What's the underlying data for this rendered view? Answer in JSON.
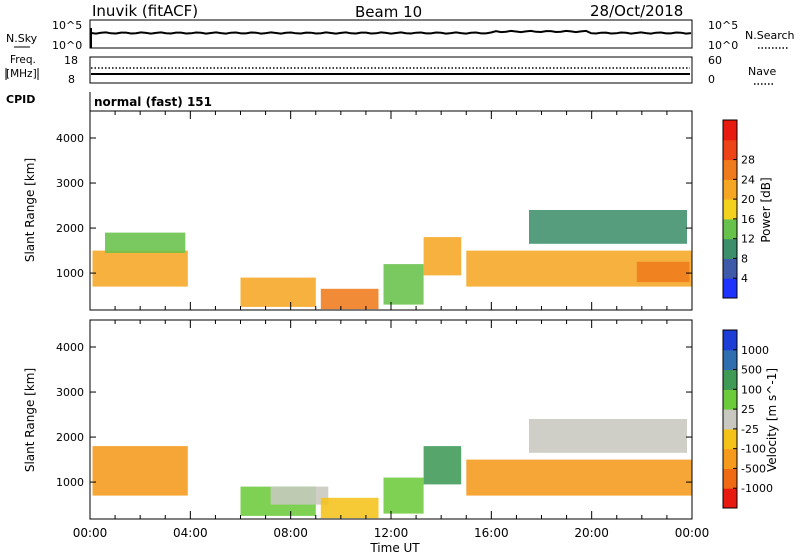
{
  "header": {
    "station": "Inuvik (fitACF)",
    "beam": "Beam 10",
    "date": "28/Oct/2018"
  },
  "top_panel": {
    "left_label": "N.Sky",
    "right_label": "N.Search",
    "left_ticks": [
      "10^5",
      "10^0"
    ],
    "right_ticks": [
      "10^5",
      "10^0"
    ]
  },
  "freq_panel": {
    "left_label_1": "Freq.",
    "left_label_2": "[MHz]",
    "right_label": "Nave",
    "left_ticks": [
      "18",
      "8"
    ],
    "right_ticks": [
      "60",
      "0"
    ]
  },
  "cpid": {
    "label": "CPID",
    "value": "normal (fast) 151"
  },
  "x_axis": {
    "label": "Time UT",
    "ticks": [
      "00:00",
      "04:00",
      "08:00",
      "12:00",
      "16:00",
      "20:00",
      "00:00"
    ]
  },
  "chart_data": [
    {
      "type": "heatmap",
      "panel": "power",
      "xlabel": "Time UT",
      "ylabel": "Slant Range [km]",
      "xlim": [
        0,
        24
      ],
      "ylim": [
        180,
        4600
      ],
      "y_ticks": [
        1000,
        2000,
        3000,
        4000
      ],
      "colorbar": {
        "label": "Power [dB]",
        "ticks": [
          "4",
          "8",
          "12",
          "16",
          "20",
          "24",
          "28"
        ],
        "colors": [
          "#1f33ff",
          "#3f5aa8",
          "#3d8f6b",
          "#66c24a",
          "#f2d21c",
          "#f5a623",
          "#f07b1c",
          "#ee4316",
          "#e81a10"
        ]
      },
      "blobs": [
        {
          "t0": 0.1,
          "t1": 3.9,
          "r0": 700,
          "r1": 1500,
          "level": 5
        },
        {
          "t0": 0.6,
          "t1": 3.8,
          "r0": 1450,
          "r1": 1900,
          "level": 3
        },
        {
          "t0": 6.0,
          "t1": 9.0,
          "r0": 250,
          "r1": 900,
          "level": 5
        },
        {
          "t0": 9.2,
          "t1": 11.5,
          "r0": 200,
          "r1": 650,
          "level": 6
        },
        {
          "t0": 11.7,
          "t1": 13.3,
          "r0": 300,
          "r1": 1200,
          "level": 3
        },
        {
          "t0": 13.3,
          "t1": 14.8,
          "r0": 950,
          "r1": 1800,
          "level": 5
        },
        {
          "t0": 15.0,
          "t1": 24.0,
          "r0": 700,
          "r1": 1500,
          "level": 5
        },
        {
          "t0": 17.5,
          "t1": 23.8,
          "r0": 1650,
          "r1": 2400,
          "level": 2
        },
        {
          "t0": 21.8,
          "t1": 23.9,
          "r0": 800,
          "r1": 1250,
          "level": 6
        }
      ]
    },
    {
      "type": "heatmap",
      "panel": "velocity",
      "xlabel": "Time UT",
      "ylabel": "Slant Range [km]",
      "xlim": [
        0,
        24
      ],
      "ylim": [
        180,
        4600
      ],
      "y_ticks": [
        1000,
        2000,
        3000,
        4000
      ],
      "colorbar": {
        "label": "Velocity [m s^-1]",
        "ticks": [
          "1000",
          "500",
          "100",
          "25",
          "-25",
          "-100",
          "-500",
          "-1000"
        ],
        "colors": [
          "#1c3dd6",
          "#2f6fb0",
          "#3f9a56",
          "#6ccb3a",
          "#c8c8c0",
          "#f5c21a",
          "#f59a1a",
          "#f06a14",
          "#e81a10"
        ]
      },
      "blobs": [
        {
          "t0": 0.1,
          "t1": 3.9,
          "r0": 700,
          "r1": 1800,
          "level": 6
        },
        {
          "t0": 6.0,
          "t1": 9.0,
          "r0": 250,
          "r1": 900,
          "level": 3
        },
        {
          "t0": 7.2,
          "t1": 9.5,
          "r0": 500,
          "r1": 900,
          "level": 4
        },
        {
          "t0": 9.2,
          "t1": 11.5,
          "r0": 200,
          "r1": 650,
          "level": 5
        },
        {
          "t0": 11.7,
          "t1": 13.3,
          "r0": 300,
          "r1": 1100,
          "level": 3
        },
        {
          "t0": 13.3,
          "t1": 14.8,
          "r0": 950,
          "r1": 1800,
          "level": 2
        },
        {
          "t0": 15.0,
          "t1": 24.0,
          "r0": 700,
          "r1": 1500,
          "level": 6
        },
        {
          "t0": 17.5,
          "t1": 23.8,
          "r0": 1650,
          "r1": 2400,
          "level": 4
        }
      ]
    }
  ]
}
